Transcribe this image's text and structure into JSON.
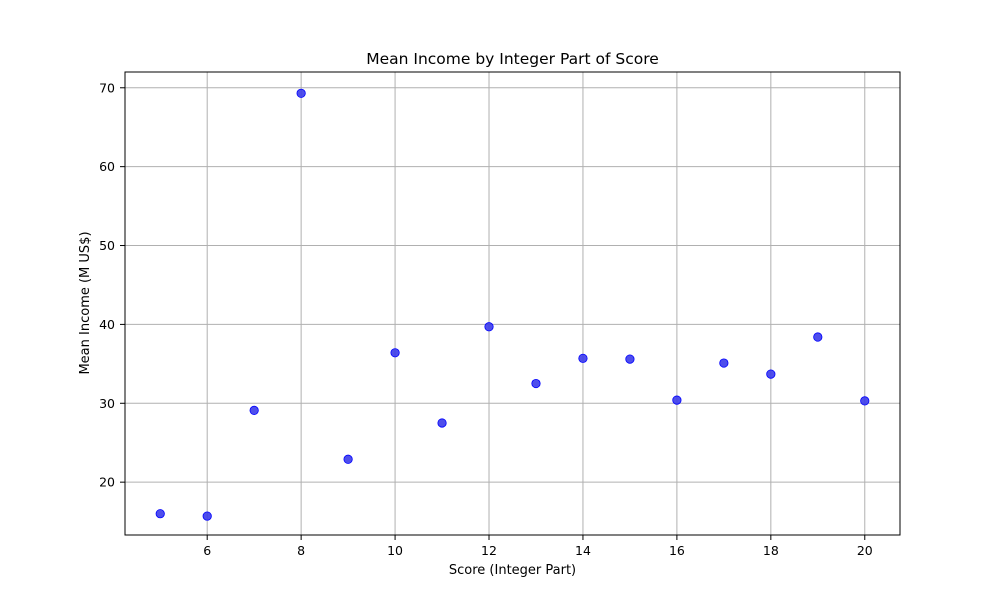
{
  "chart_data": {
    "type": "scatter",
    "title": "Mean Income by Integer Part of Score",
    "xlabel": "Score (Integer Part)",
    "ylabel": "Mean Income (M US$)",
    "xlim": [
      4.25,
      20.75
    ],
    "ylim": [
      13.3,
      72.0
    ],
    "xticks": [
      6,
      8,
      10,
      12,
      14,
      16,
      18,
      20
    ],
    "yticks": [
      20,
      30,
      40,
      50,
      60,
      70
    ],
    "grid": true,
    "series": [
      {
        "x": [
          5,
          6,
          7,
          8,
          9,
          10,
          11,
          12,
          13,
          14,
          15,
          16,
          17,
          18,
          19,
          20
        ],
        "y": [
          16.0,
          15.7,
          29.1,
          69.3,
          22.9,
          36.4,
          27.5,
          39.7,
          32.5,
          35.7,
          35.6,
          30.4,
          35.1,
          33.7,
          38.4,
          30.3
        ]
      }
    ],
    "colors": {
      "marker_fill": "#3b3bea",
      "marker_edge": "#0000ff",
      "grid": "#b0b0b0",
      "axes": "#000000"
    }
  }
}
